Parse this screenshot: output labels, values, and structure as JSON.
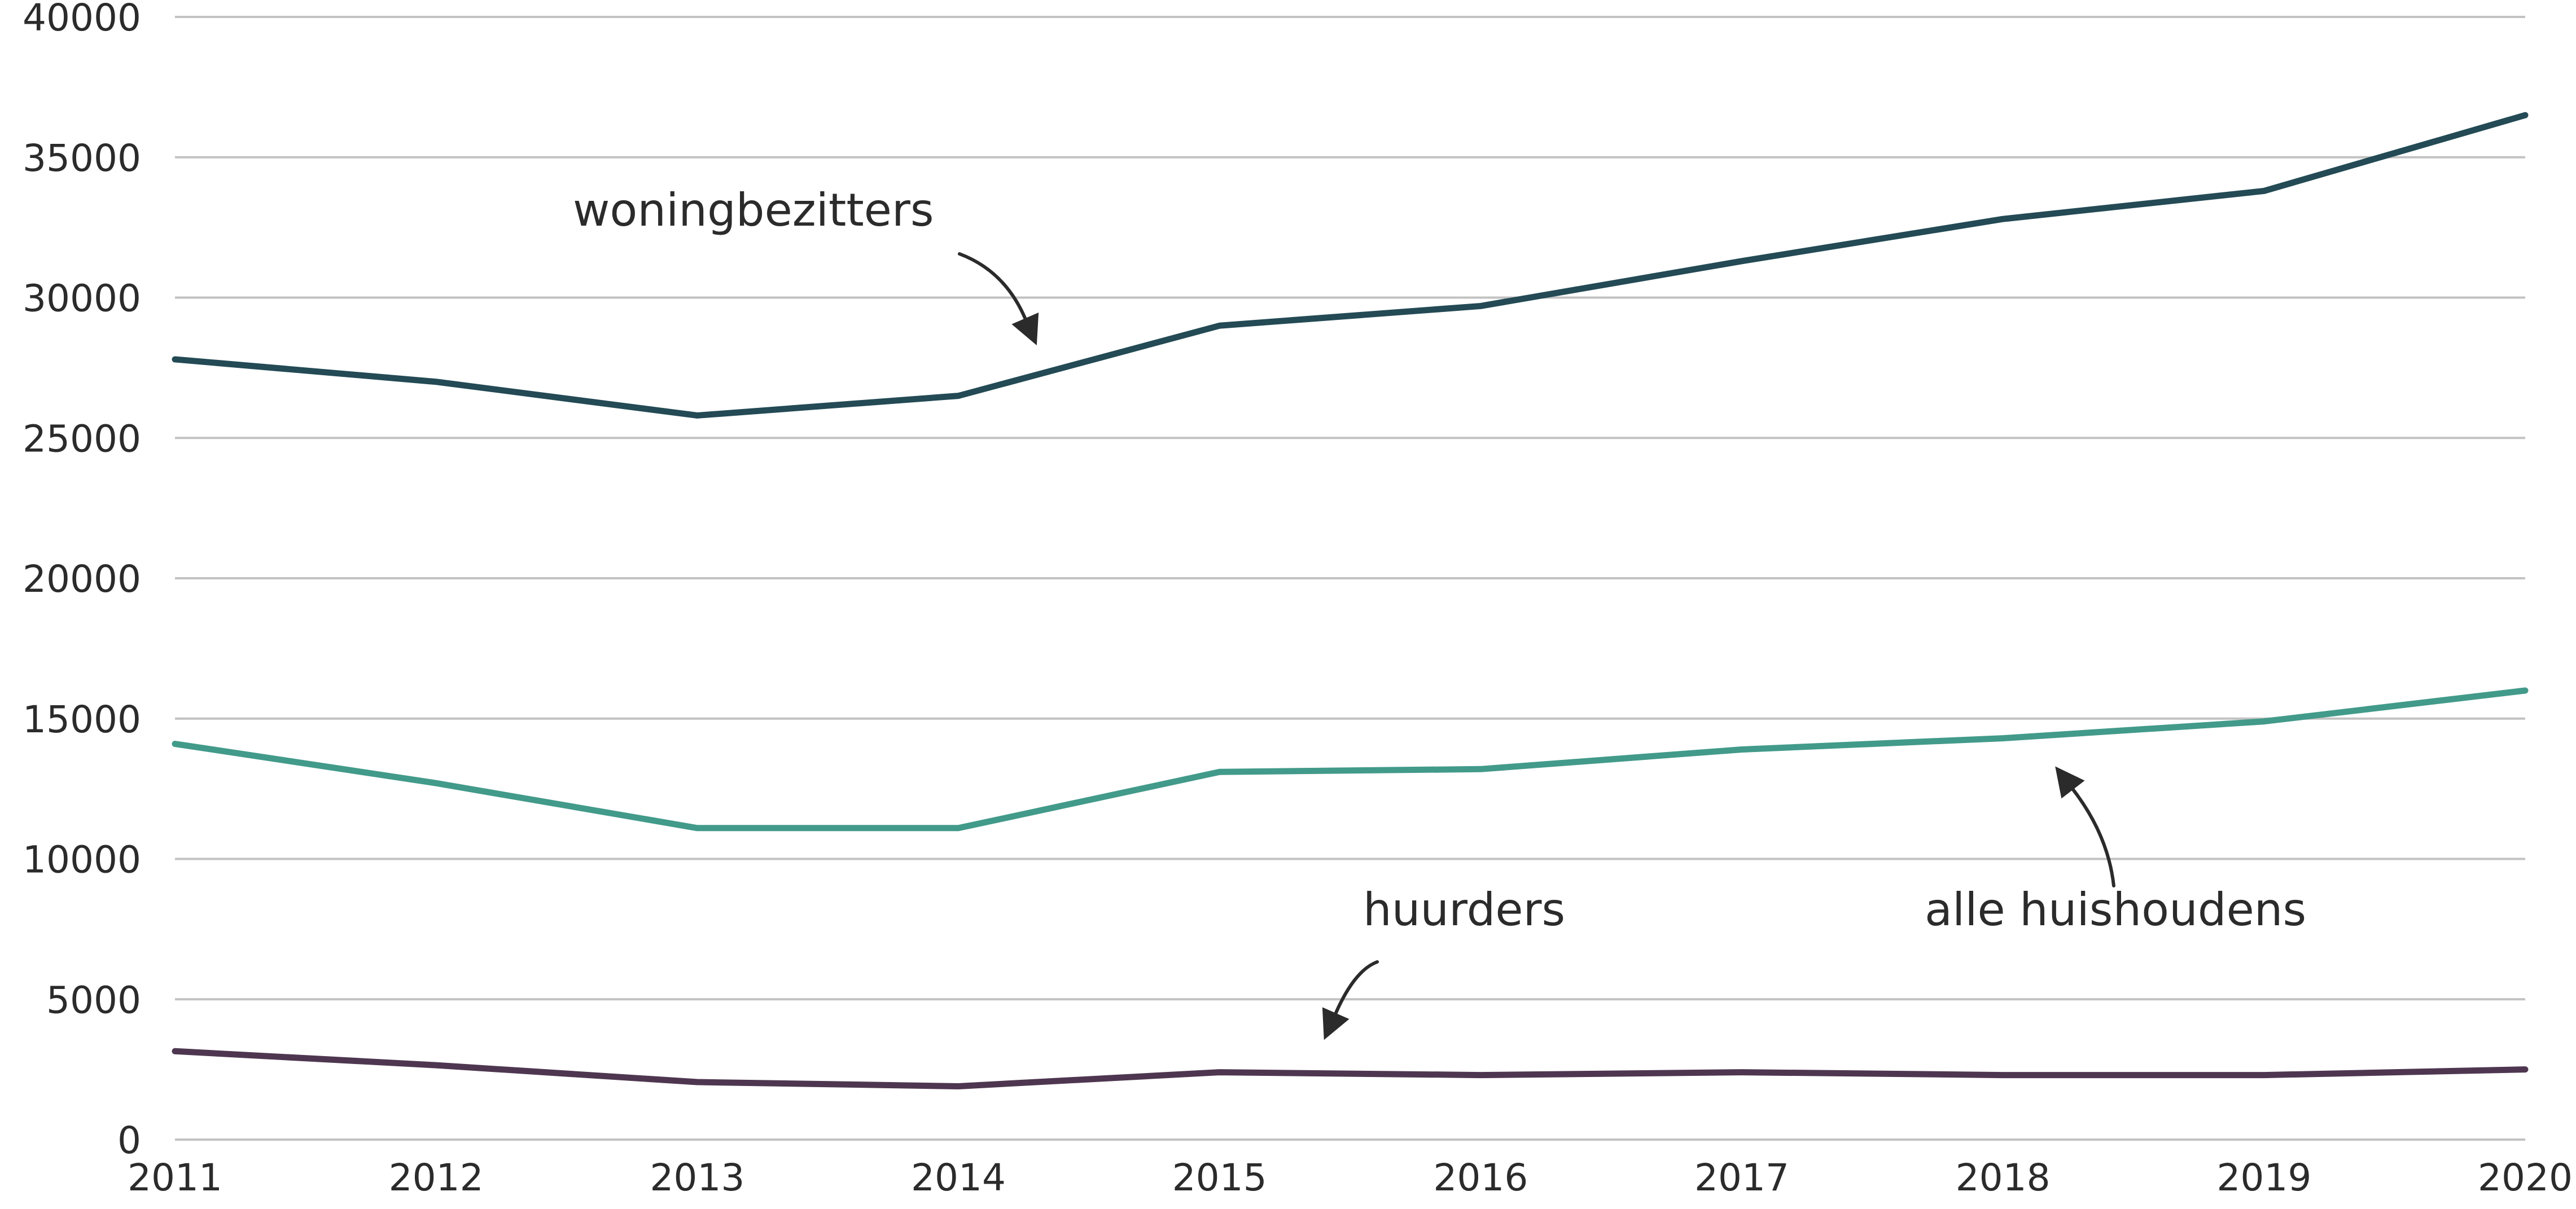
{
  "chart_data": {
    "type": "line",
    "title": "",
    "xlabel": "",
    "ylabel": "",
    "x": [
      2011,
      2012,
      2013,
      2014,
      2015,
      2016,
      2017,
      2018,
      2019,
      2020
    ],
    "ylim": [
      0,
      40000
    ],
    "yticks": [
      0,
      5000,
      10000,
      15000,
      20000,
      25000,
      30000,
      35000,
      40000
    ],
    "grid": true,
    "legend": "none",
    "series": [
      {
        "name": "woningbezitters",
        "color": "#234a55",
        "values": [
          27800,
          27000,
          25800,
          26500,
          29000,
          29700,
          31300,
          32800,
          33800,
          36500
        ]
      },
      {
        "name": "alle huishoudens",
        "color": "#429a8a",
        "values": [
          14100,
          12700,
          11100,
          11100,
          13100,
          13200,
          13900,
          14300,
          14900,
          16000
        ]
      },
      {
        "name": "huurders",
        "color": "#4e3650",
        "values": [
          3150,
          2650,
          2050,
          1900,
          2400,
          2300,
          2400,
          2300,
          2300,
          2500
        ]
      }
    ],
    "annotations": [
      {
        "text": "woningbezitters",
        "series": "woningbezitters",
        "x": 2014.3,
        "y": 28300
      },
      {
        "text": "alle huishoudens",
        "series": "alle huishoudens",
        "x": 2018.2,
        "y": 13300
      },
      {
        "text": "huurders",
        "series": "huurders",
        "x": 2015.4,
        "y": 3550
      }
    ]
  }
}
